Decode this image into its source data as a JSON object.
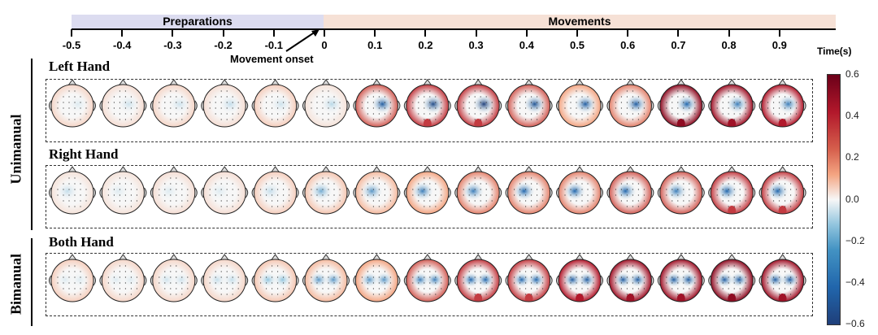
{
  "timeline": {
    "phases": [
      {
        "label": "Preparations",
        "color": "#dcdcf0"
      },
      {
        "label": "Movements",
        "color": "#f6e1d6"
      }
    ],
    "ticks": [
      "-0.5",
      "-0.4",
      "-0.3",
      "-0.2",
      "-0.1",
      "0",
      "0.1",
      "0.2",
      "0.3",
      "0.4",
      "0.5",
      "0.6",
      "0.7",
      "0.8",
      "0.9"
    ],
    "unit_label": "Time(s)",
    "annotation": "Movement onset"
  },
  "groups": [
    {
      "label": "Unimanual"
    },
    {
      "label": "Bimanual"
    }
  ],
  "rows": [
    {
      "label": "Left Hand",
      "blue_peak": [
        -0.05,
        -0.08,
        -0.08,
        -0.1,
        -0.08,
        -0.12,
        -0.45,
        -0.55,
        -0.6,
        -0.5,
        -0.45,
        -0.45,
        -0.4,
        -0.35,
        -0.35
      ],
      "red_peak": [
        0.08,
        0.06,
        0.08,
        0.06,
        0.1,
        0.05,
        0.3,
        0.35,
        0.35,
        0.3,
        0.2,
        0.25,
        0.5,
        0.45,
        0.4
      ]
    },
    {
      "label": "Right Hand",
      "blue_peak": [
        -0.1,
        -0.05,
        -0.05,
        -0.05,
        -0.1,
        -0.25,
        -0.3,
        -0.35,
        -0.35,
        -0.4,
        -0.4,
        -0.4,
        -0.35,
        -0.4,
        -0.4
      ],
      "red_peak": [
        0.05,
        0.05,
        0.06,
        0.06,
        0.1,
        0.12,
        0.15,
        0.2,
        0.25,
        0.25,
        0.25,
        0.3,
        0.3,
        0.35,
        0.35
      ]
    },
    {
      "label": "Both Hand",
      "blue_peak": [
        -0.05,
        -0.05,
        -0.08,
        -0.1,
        -0.2,
        -0.3,
        -0.3,
        -0.35,
        -0.4,
        -0.4,
        -0.45,
        -0.45,
        -0.45,
        -0.45,
        -0.45
      ],
      "red_peak": [
        0.1,
        0.08,
        0.08,
        0.08,
        0.12,
        0.15,
        0.2,
        0.3,
        0.35,
        0.35,
        0.4,
        0.45,
        0.45,
        0.5,
        0.45
      ]
    }
  ],
  "colorbar": {
    "ticks": [
      "0.6",
      "0.4",
      "0.2",
      "0.0",
      "−0.2",
      "−0.4",
      "−0.6"
    ],
    "range": [
      -0.6,
      0.6
    ],
    "colormap": "RdBu_r",
    "low_color": "#1f3f7a",
    "mid_color": "#f5f5f5",
    "high_color": "#6b0019"
  }
}
